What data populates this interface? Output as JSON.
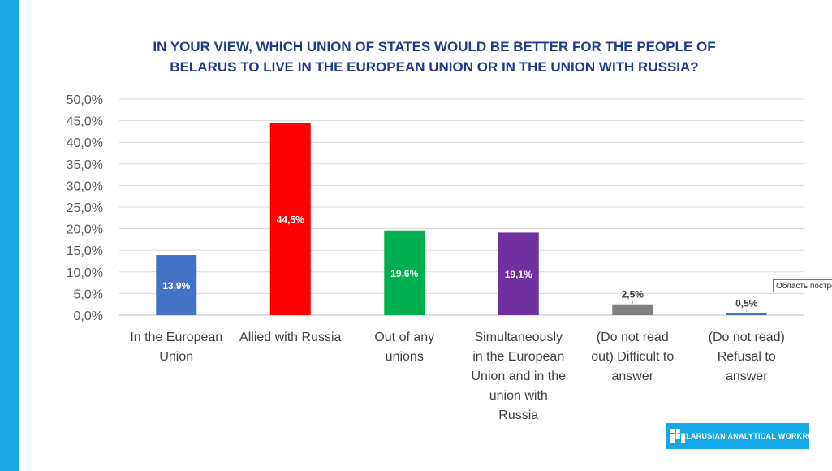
{
  "chart_data": {
    "type": "bar",
    "title": "IN YOUR VIEW, WHICH UNION OF STATES WOULD BE BETTER FOR THE PEOPLE OF BELARUS TO LIVE IN THE EUROPEAN UNION OR IN THE UNION WITH RUSSIA?",
    "categories": [
      [
        "In the European",
        "Union"
      ],
      [
        "Allied with Russia"
      ],
      [
        "Out of any",
        "unions"
      ],
      [
        "Simultaneously",
        "in the European",
        "Union and in the",
        "union with",
        "Russia"
      ],
      [
        "(Do not read",
        "out) Difficult to",
        "answer"
      ],
      [
        "(Do not read)",
        "Refusal to",
        "answer"
      ]
    ],
    "values": [
      13.9,
      44.5,
      19.6,
      19.1,
      2.5,
      0.5
    ],
    "data_labels": [
      "13,9%",
      "44,5%",
      "19,6%",
      "19,1%",
      "2,5%",
      "0,5%"
    ],
    "colors": [
      "#4472c4",
      "#ff0000",
      "#00b050",
      "#7030a0",
      "#808080",
      "#4472c4"
    ],
    "ylim": [
      0,
      50
    ],
    "yticks": [
      "0,0%",
      "5,0%",
      "10,0%",
      "15,0%",
      "20,0%",
      "25,0%",
      "30,0%",
      "35,0%",
      "40,0%",
      "45,0%",
      "50,0%"
    ],
    "grid": true,
    "xlabel": "",
    "ylabel": ""
  },
  "tooltip": "Область построения",
  "logo": {
    "text": "Belarusian Analytical Workroom"
  },
  "colors": {
    "accent": "#1aa7e8",
    "title": "#1f3c88"
  }
}
